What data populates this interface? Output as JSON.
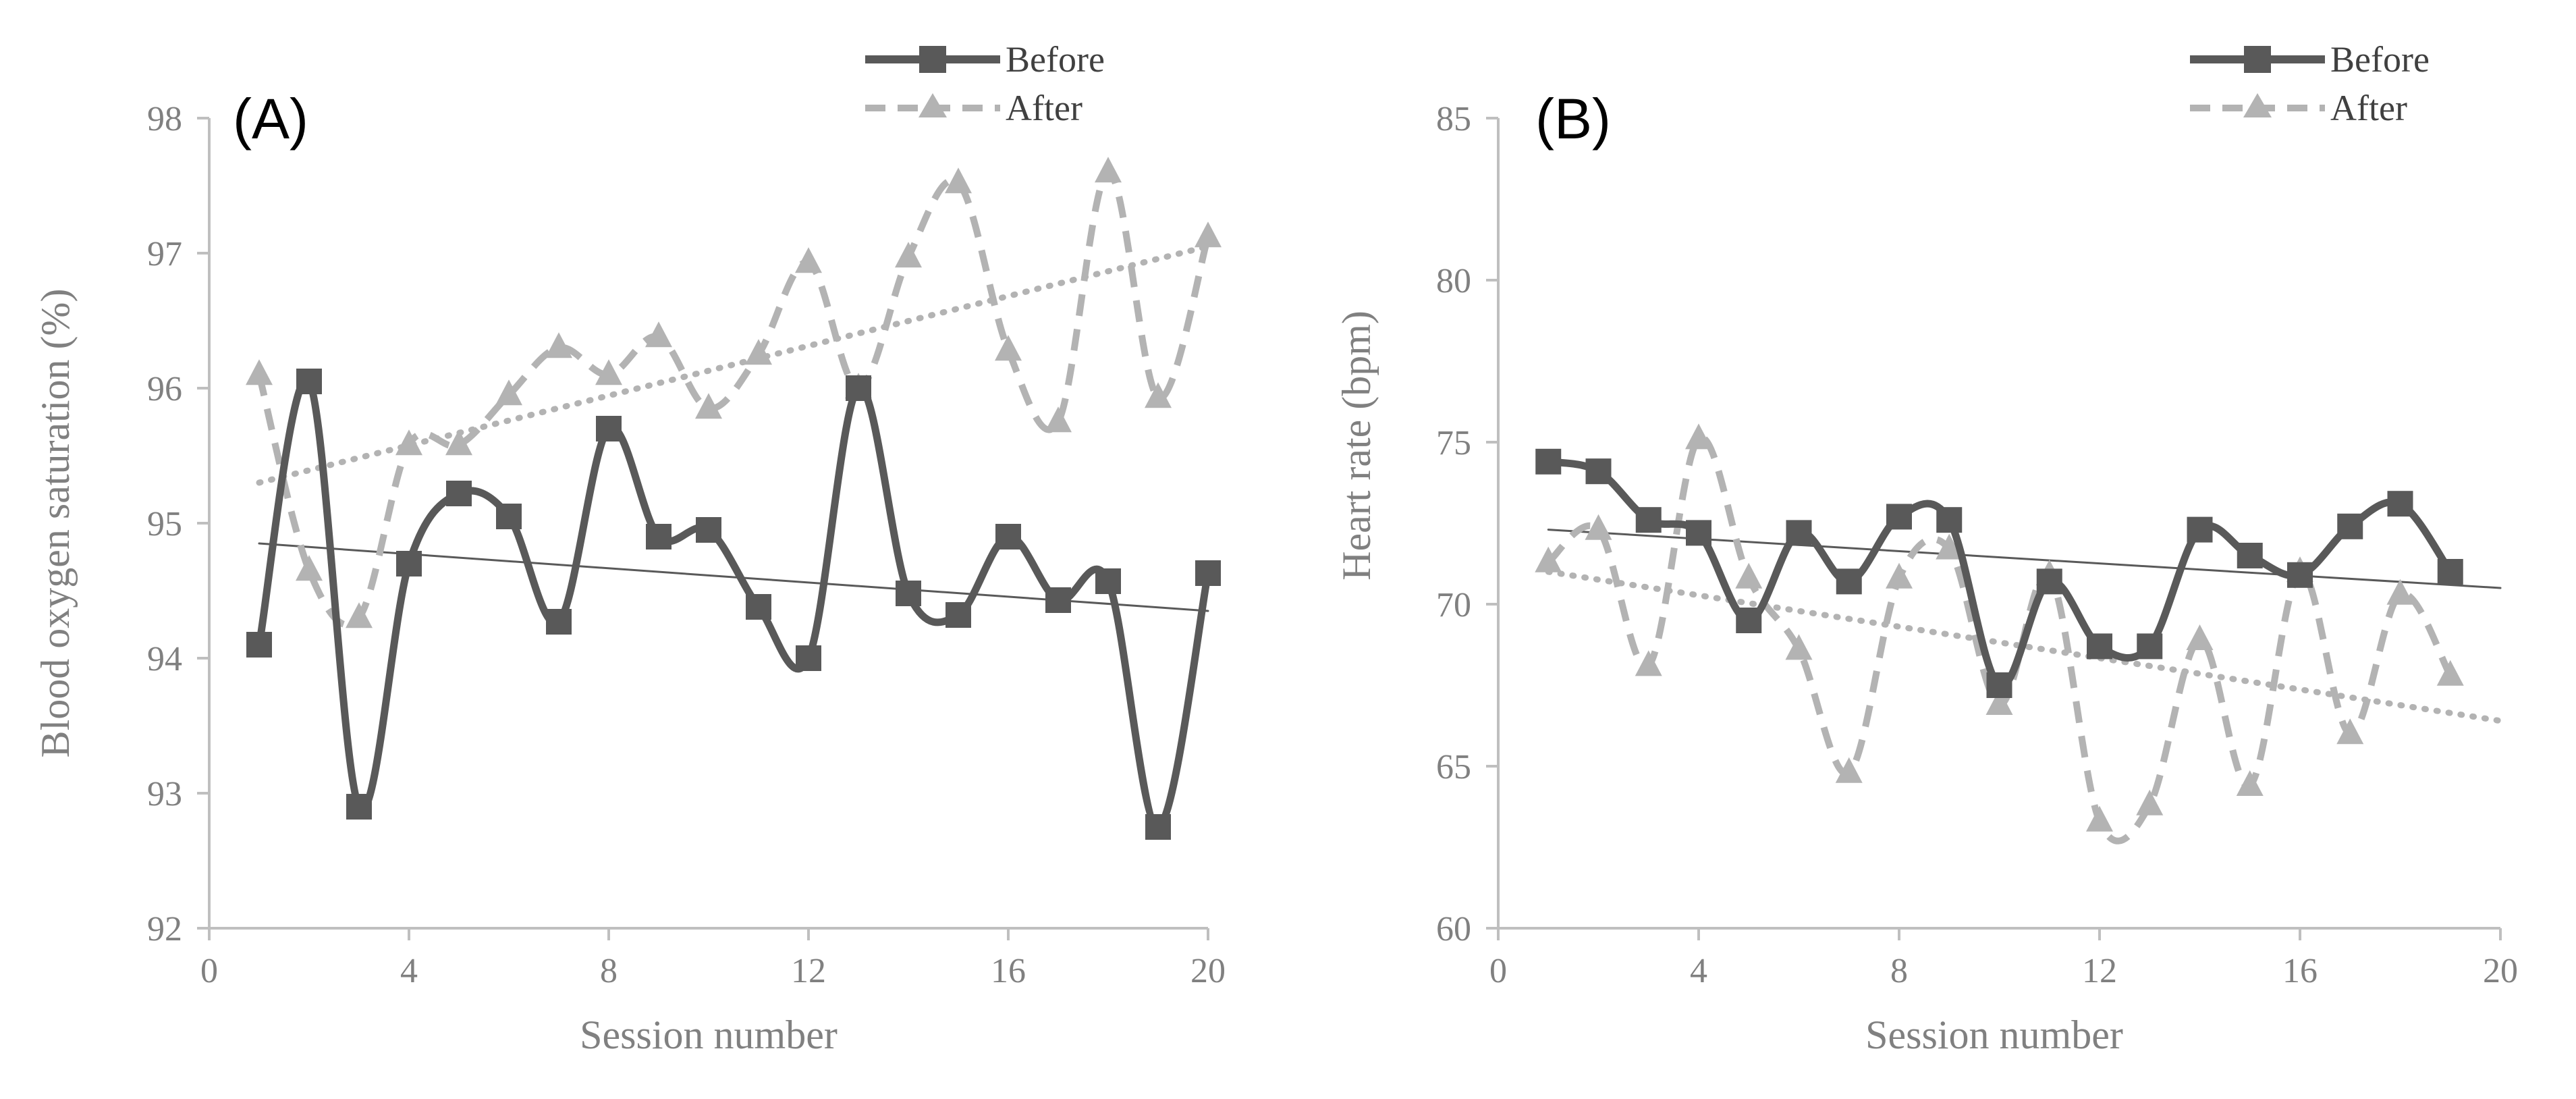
{
  "figure": {
    "panels": [
      "(A)",
      "(B)"
    ]
  },
  "colors": {
    "before": "#595959",
    "after": "#b3b3b3",
    "axis": "#bfbfbf",
    "text": "#808080"
  },
  "chart_data": [
    {
      "type": "line",
      "panel": "(A)",
      "xlabel": "Session number",
      "ylabel": "Blood oxygen saturation (%)",
      "xlim": [
        0,
        20
      ],
      "ylim": [
        92,
        98
      ],
      "xticks": [
        0,
        4,
        8,
        12,
        16,
        20
      ],
      "yticks": [
        92,
        93,
        94,
        95,
        96,
        97,
        98
      ],
      "legend": "top-right",
      "series": [
        {
          "name": "Before",
          "style": "solid",
          "marker": "square",
          "x": [
            1,
            2,
            3,
            4,
            5,
            6,
            7,
            8,
            9,
            10,
            11,
            12,
            13,
            14,
            15,
            16,
            17,
            18,
            19,
            20
          ],
          "values": [
            94.1,
            96.05,
            92.9,
            94.7,
            95.22,
            95.05,
            94.27,
            95.7,
            94.9,
            94.95,
            94.38,
            94.0,
            96.0,
            94.48,
            94.32,
            94.9,
            94.43,
            94.57,
            92.75,
            94.63
          ]
        },
        {
          "name": "After",
          "style": "dashed",
          "marker": "triangle",
          "x": [
            1,
            2,
            3,
            4,
            5,
            6,
            7,
            8,
            9,
            10,
            11,
            12,
            13,
            14,
            15,
            16,
            17,
            18,
            19,
            20
          ],
          "values": [
            96.1,
            94.65,
            94.3,
            95.58,
            95.58,
            95.95,
            96.3,
            96.1,
            96.38,
            95.85,
            96.25,
            96.93,
            96.0,
            96.97,
            97.52,
            96.28,
            95.75,
            97.6,
            95.93,
            97.12
          ]
        }
      ],
      "trendlines": [
        {
          "series": "Before",
          "style": "solid-thin",
          "x": [
            1,
            20
          ],
          "values": [
            94.85,
            94.35
          ]
        },
        {
          "series": "After",
          "style": "dotted",
          "x": [
            1,
            20
          ],
          "values": [
            95.3,
            97.05
          ]
        }
      ]
    },
    {
      "type": "line",
      "panel": "(B)",
      "xlabel": "Session number",
      "ylabel": "Heart rate (bpm)",
      "xlim": [
        0,
        20
      ],
      "ylim": [
        60,
        85
      ],
      "xticks": [
        0,
        4,
        8,
        12,
        16,
        20
      ],
      "yticks": [
        60,
        65,
        70,
        75,
        80,
        85
      ],
      "legend": "top-right",
      "series": [
        {
          "name": "Before",
          "style": "solid",
          "marker": "square",
          "x": [
            1,
            2,
            3,
            4,
            5,
            6,
            7,
            8,
            9,
            10,
            11,
            12,
            13,
            14,
            15,
            16,
            17,
            18,
            19
          ],
          "values": [
            74.4,
            74.1,
            72.6,
            72.2,
            69.5,
            72.2,
            70.7,
            72.7,
            72.6,
            67.5,
            70.7,
            68.7,
            68.7,
            72.3,
            71.5,
            70.9,
            72.4,
            73.1,
            71.0
          ]
        },
        {
          "name": "After",
          "style": "dashed",
          "marker": "triangle",
          "x": [
            1,
            2,
            3,
            4,
            5,
            6,
            7,
            8,
            9,
            10,
            11,
            12,
            13,
            14,
            15,
            16,
            17,
            18,
            19
          ],
          "values": [
            71.3,
            72.3,
            68.1,
            75.1,
            70.8,
            68.6,
            64.8,
            70.8,
            71.7,
            66.9,
            70.9,
            63.3,
            63.8,
            68.9,
            64.4,
            71.0,
            66.0,
            70.3,
            67.8
          ]
        }
      ],
      "trendlines": [
        {
          "series": "Before",
          "style": "solid-thin",
          "x": [
            1,
            20
          ],
          "values": [
            72.3,
            70.5
          ]
        },
        {
          "series": "After",
          "style": "dotted",
          "x": [
            1,
            20
          ],
          "values": [
            71.0,
            66.4
          ]
        }
      ]
    }
  ]
}
